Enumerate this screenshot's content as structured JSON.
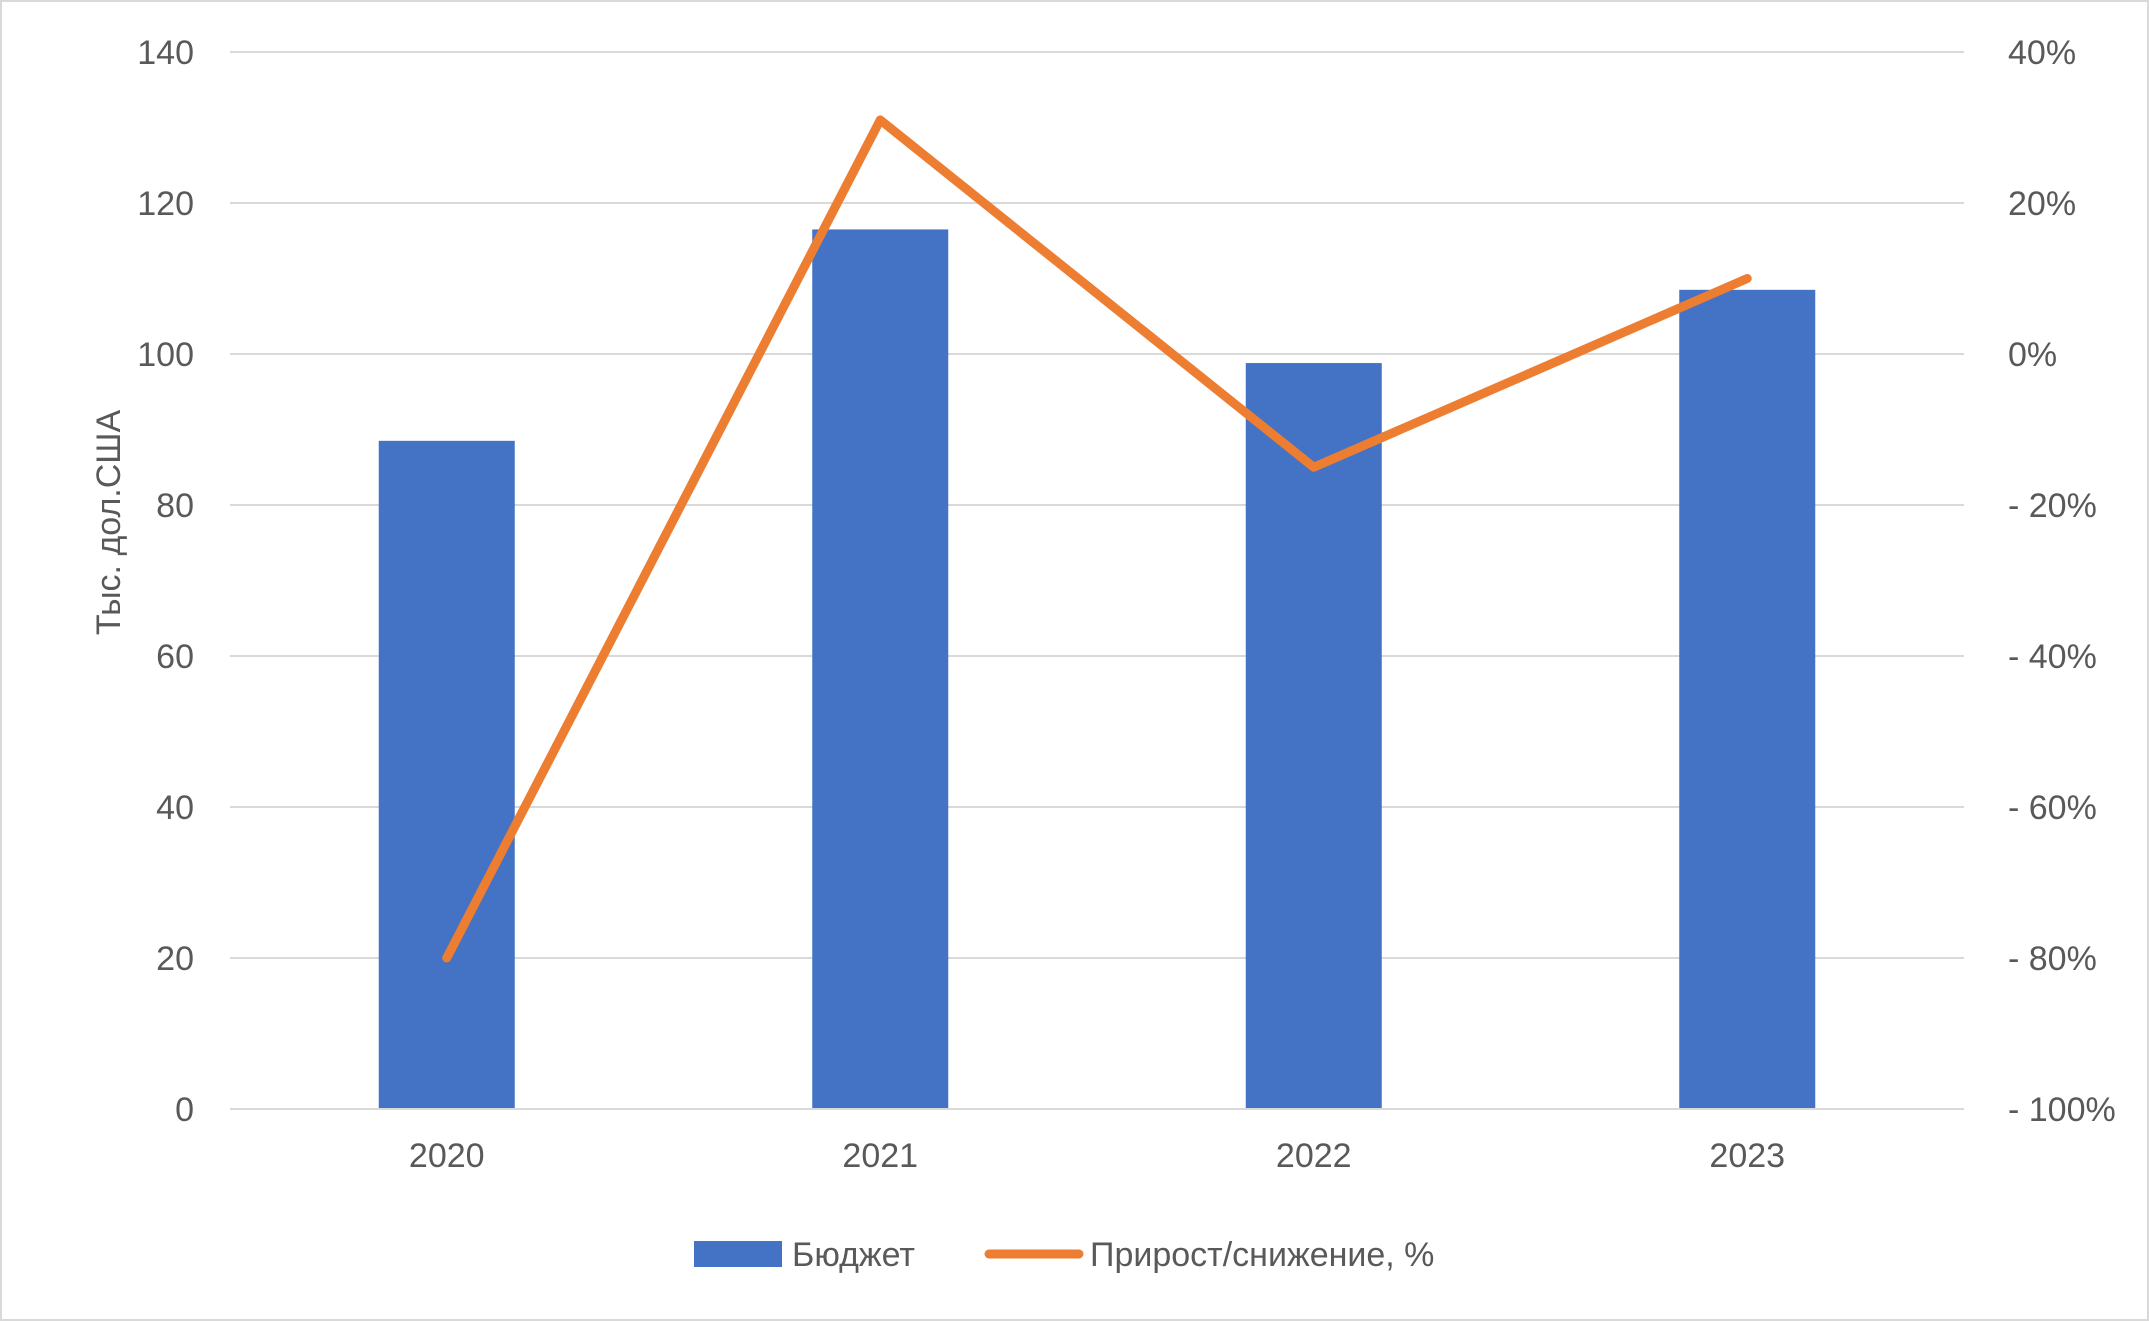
{
  "chart_data": {
    "type": "bar",
    "categories": [
      "2020",
      "2021",
      "2022",
      "2023"
    ],
    "series": [
      {
        "name": "Бюджет",
        "type": "bar",
        "axis": "left",
        "color": "#4472C4",
        "values": [
          88.5,
          116.5,
          98.8,
          108.5
        ]
      },
      {
        "name": "Прирост/снижение, %",
        "type": "line",
        "axis": "right",
        "color": "#ED7D31",
        "values": [
          -80,
          31,
          -15,
          10
        ]
      }
    ],
    "ylabel": "Тыс. дол.США",
    "ylim": [
      0,
      140
    ],
    "y_ticks": [
      0,
      20,
      40,
      60,
      80,
      100,
      120,
      140
    ],
    "y_tick_labels": [
      "0",
      "20",
      "40",
      "60",
      "80",
      "100",
      "120",
      "140"
    ],
    "y2lim": [
      -100,
      40
    ],
    "y2_ticks": [
      -100,
      -80,
      -60,
      -40,
      -20,
      0,
      20,
      40
    ],
    "y2_tick_labels": [
      "- 100%",
      "- 80%",
      "- 60%",
      "- 40%",
      "- 20%",
      "0%",
      "20%",
      "40%"
    ],
    "grid": true,
    "gridline_color": "#d9d9d9",
    "legend": "bottom"
  }
}
